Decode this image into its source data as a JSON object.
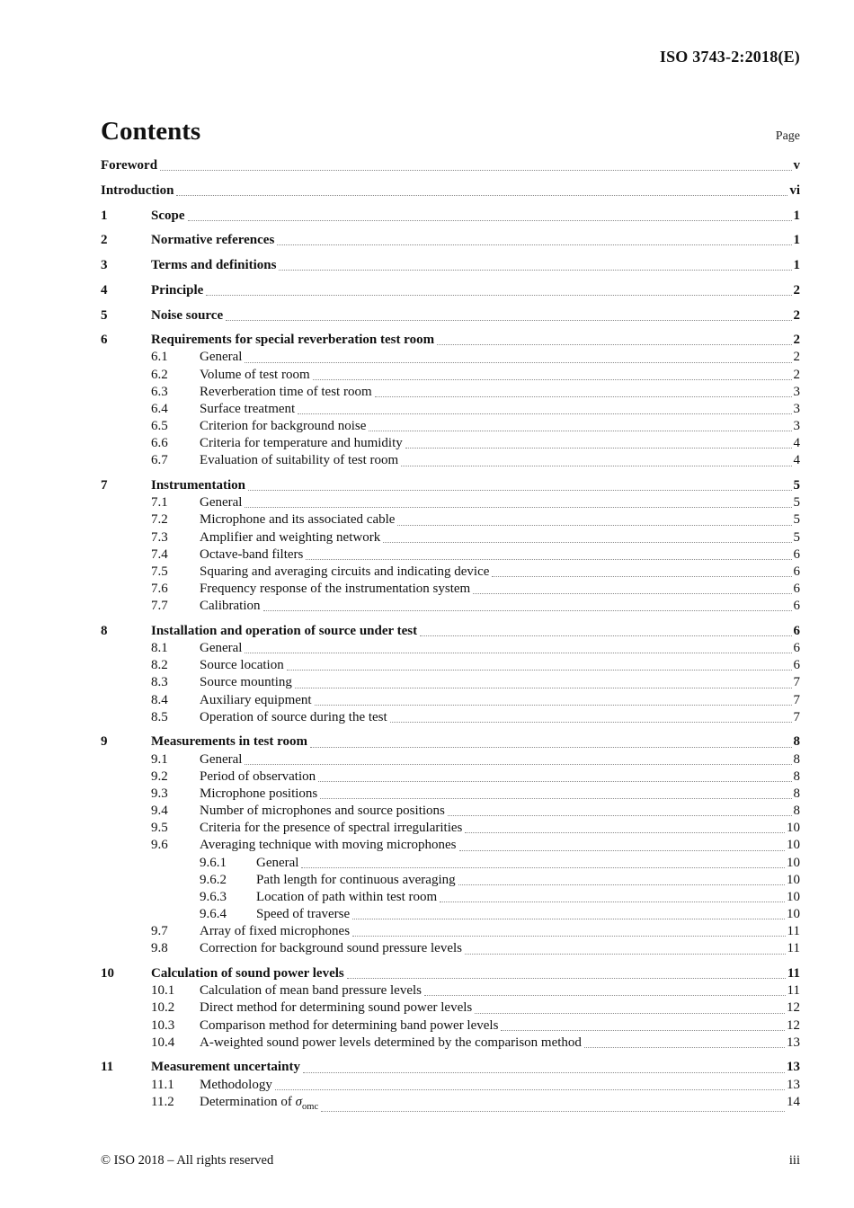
{
  "header": {
    "doc_id": "ISO 3743-2:2018(E)"
  },
  "contents": {
    "title": "Contents",
    "page_label": "Page"
  },
  "toc": [
    {
      "level": 0,
      "title": "Foreword",
      "page": "v",
      "bold": true,
      "space": true
    },
    {
      "level": 0,
      "title": "Introduction",
      "page": "vi",
      "bold": true,
      "space": true
    },
    {
      "level": 1,
      "num": "1",
      "title": "Scope",
      "page": "1",
      "bold": true,
      "space": true
    },
    {
      "level": 1,
      "num": "2",
      "title": "Normative references",
      "page": "1",
      "bold": true,
      "space": true
    },
    {
      "level": 1,
      "num": "3",
      "title": "Terms and definitions",
      "page": "1",
      "bold": true,
      "space": true
    },
    {
      "level": 1,
      "num": "4",
      "title": "Principle",
      "page": "2",
      "bold": true,
      "space": true
    },
    {
      "level": 1,
      "num": "5",
      "title": "Noise source",
      "page": "2",
      "bold": true,
      "space": true
    },
    {
      "level": 1,
      "num": "6",
      "title": "Requirements for special reverberation test room",
      "page": "2",
      "bold": true,
      "space": true
    },
    {
      "level": 2,
      "num": "6.1",
      "title": "General",
      "page": "2"
    },
    {
      "level": 2,
      "num": "6.2",
      "title": "Volume of test room",
      "page": "2"
    },
    {
      "level": 2,
      "num": "6.3",
      "title": "Reverberation time of test room",
      "page": "3"
    },
    {
      "level": 2,
      "num": "6.4",
      "title": "Surface treatment",
      "page": "3"
    },
    {
      "level": 2,
      "num": "6.5",
      "title": "Criterion for background noise",
      "page": "3"
    },
    {
      "level": 2,
      "num": "6.6",
      "title": "Criteria for temperature and humidity",
      "page": "4"
    },
    {
      "level": 2,
      "num": "6.7",
      "title": "Evaluation of suitability of test room",
      "page": "4"
    },
    {
      "level": 1,
      "num": "7",
      "title": "Instrumentation",
      "page": "5",
      "bold": true,
      "space": true
    },
    {
      "level": 2,
      "num": "7.1",
      "title": "General",
      "page": "5"
    },
    {
      "level": 2,
      "num": "7.2",
      "title": "Microphone and its associated cable",
      "page": "5"
    },
    {
      "level": 2,
      "num": "7.3",
      "title": "Amplifier and weighting network",
      "page": "5"
    },
    {
      "level": 2,
      "num": "7.4",
      "title": "Octave-band filters",
      "page": "6"
    },
    {
      "level": 2,
      "num": "7.5",
      "title": "Squaring and averaging circuits and indicating device",
      "page": "6"
    },
    {
      "level": 2,
      "num": "7.6",
      "title": "Frequency response of the instrumentation system",
      "page": "6"
    },
    {
      "level": 2,
      "num": "7.7",
      "title": "Calibration",
      "page": "6"
    },
    {
      "level": 1,
      "num": "8",
      "title": "Installation and operation of source under test",
      "page": "6",
      "bold": true,
      "space": true
    },
    {
      "level": 2,
      "num": "8.1",
      "title": "General",
      "page": "6"
    },
    {
      "level": 2,
      "num": "8.2",
      "title": "Source location",
      "page": "6"
    },
    {
      "level": 2,
      "num": "8.3",
      "title": "Source mounting",
      "page": "7"
    },
    {
      "level": 2,
      "num": "8.4",
      "title": "Auxiliary equipment",
      "page": "7"
    },
    {
      "level": 2,
      "num": "8.5",
      "title": "Operation of source during the test",
      "page": "7"
    },
    {
      "level": 1,
      "num": "9",
      "title": "Measurements in test room",
      "page": "8",
      "bold": true,
      "space": true
    },
    {
      "level": 2,
      "num": "9.1",
      "title": "General",
      "page": "8"
    },
    {
      "level": 2,
      "num": "9.2",
      "title": "Period of observation",
      "page": "8"
    },
    {
      "level": 2,
      "num": "9.3",
      "title": "Microphone positions",
      "page": "8"
    },
    {
      "level": 2,
      "num": "9.4",
      "title": "Number of microphones and source positions",
      "page": "8"
    },
    {
      "level": 2,
      "num": "9.5",
      "title": "Criteria for the presence of spectral irregularities",
      "page": "10"
    },
    {
      "level": 2,
      "num": "9.6",
      "title": "Averaging technique with moving microphones",
      "page": "10"
    },
    {
      "level": 3,
      "num": "9.6.1",
      "title": "General",
      "page": "10"
    },
    {
      "level": 3,
      "num": "9.6.2",
      "title": "Path length for continuous averaging",
      "page": "10"
    },
    {
      "level": 3,
      "num": "9.6.3",
      "title": "Location of path within test room",
      "page": "10"
    },
    {
      "level": 3,
      "num": "9.6.4",
      "title": "Speed of traverse",
      "page": "10"
    },
    {
      "level": 2,
      "num": "9.7",
      "title": "Array of fixed microphones",
      "page": "11"
    },
    {
      "level": 2,
      "num": "9.8",
      "title": "Correction for background sound pressure levels",
      "page": "11"
    },
    {
      "level": 1,
      "num": "10",
      "title": "Calculation of sound power levels",
      "page": "11",
      "bold": true,
      "space": true
    },
    {
      "level": 2,
      "num": "10.1",
      "title": "Calculation of mean band pressure levels",
      "page": "11"
    },
    {
      "level": 2,
      "num": "10.2",
      "title": "Direct method for determining sound power levels",
      "page": "12"
    },
    {
      "level": 2,
      "num": "10.3",
      "title": "Comparison method for determining band power levels",
      "page": "12"
    },
    {
      "level": 2,
      "num": "10.4",
      "title": "A-weighted sound power levels determined by the comparison method",
      "page": "13"
    },
    {
      "level": 1,
      "num": "11",
      "title": "Measurement uncertainty",
      "page": "13",
      "bold": true,
      "space": true
    },
    {
      "level": 2,
      "num": "11.1",
      "title": "Methodology",
      "page": "13"
    },
    {
      "level": 2,
      "num": "11.2",
      "title": "Determination of ",
      "symbol": "σ",
      "subscript": "omc",
      "page": "14"
    }
  ],
  "footer": {
    "copyright": "© ISO 2018 – All rights reserved",
    "page_number": "iii"
  }
}
